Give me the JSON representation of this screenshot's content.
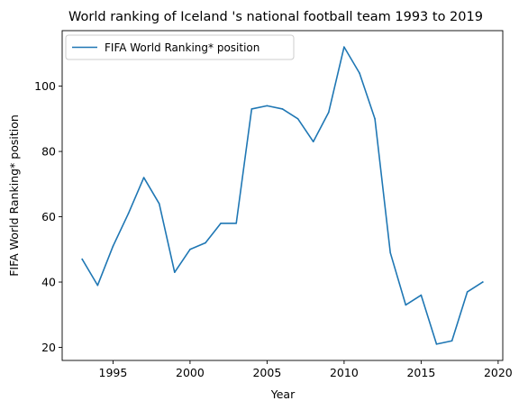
{
  "chart_data": {
    "type": "line",
    "title": "World ranking of Iceland 's national football team 1993 to 2019",
    "xlabel": "Year",
    "ylabel": "FIFA World Ranking* position",
    "xlim": [
      1991.7,
      2020.3
    ],
    "ylim": [
      16.0,
      117.0
    ],
    "xticks": [
      1995,
      2000,
      2005,
      2010,
      2015,
      2020
    ],
    "yticks": [
      20,
      40,
      60,
      80,
      100
    ],
    "grid": false,
    "legend_position": "top-left",
    "series": [
      {
        "name": "FIFA World Ranking* position",
        "color": "#1f77b4",
        "x": [
          1993,
          1994,
          1995,
          1996,
          1997,
          1998,
          1999,
          2000,
          2001,
          2002,
          2003,
          2004,
          2005,
          2006,
          2007,
          2008,
          2009,
          2010,
          2011,
          2012,
          2013,
          2014,
          2015,
          2016,
          2017,
          2018,
          2019
        ],
        "y": [
          47,
          39,
          51,
          61,
          72,
          64,
          43,
          50,
          52,
          58,
          58,
          93,
          94,
          93,
          90,
          83,
          92,
          112,
          104,
          90,
          49,
          33,
          36,
          21,
          22,
          37,
          40
        ]
      }
    ]
  }
}
